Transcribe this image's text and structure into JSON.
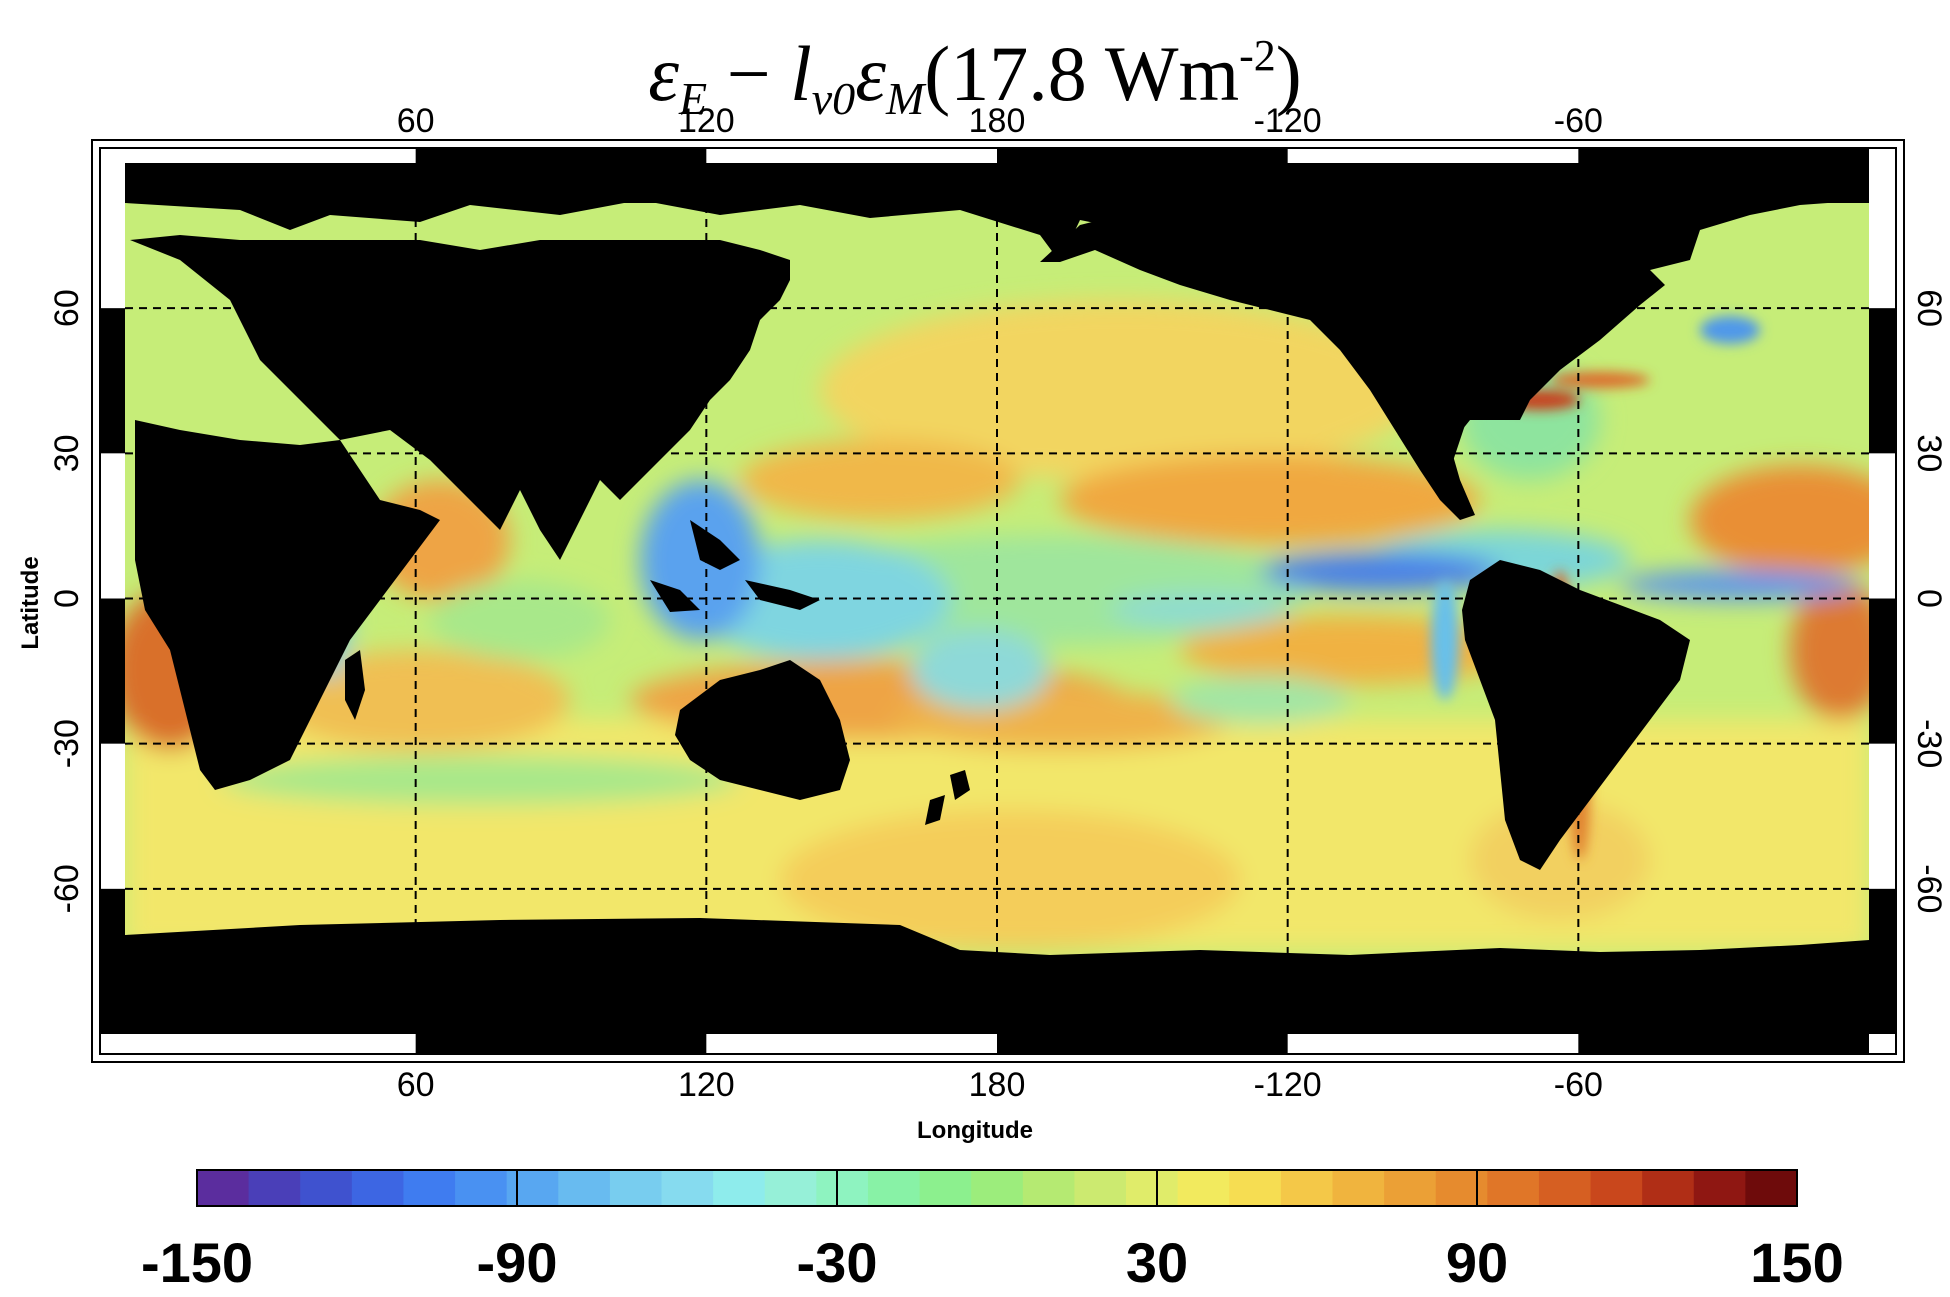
{
  "title": {
    "eps_e": "ε",
    "sub_e": "E",
    "minus": " − ",
    "l": "l",
    "sub_v0": "v0",
    "eps_m": "ε",
    "sub_m": "M",
    "value": "(17.8 Wm",
    "exp": "-2",
    "close": ")"
  },
  "map": {
    "xlabel": "Longitude",
    "ylabel": "Latitude",
    "lon_ticks": [
      "60",
      "120",
      "180",
      "-120",
      "-60"
    ],
    "lon_tick_values": [
      60,
      120,
      180,
      240,
      300
    ],
    "lat_ticks": [
      "60",
      "30",
      "0",
      "-30",
      "-60"
    ],
    "lat_tick_values": [
      60,
      30,
      0,
      -30,
      -60
    ],
    "lon_range": [
      0,
      360
    ],
    "lat_range": [
      -90,
      90
    ],
    "gridlines": "dashed",
    "land_color": "#000000"
  },
  "colorbar": {
    "min": -150,
    "max": 150,
    "tick_labels": [
      "-150",
      "-90",
      "-30",
      "30",
      "90",
      "150"
    ],
    "tick_values": [
      -150,
      -90,
      -30,
      30,
      90,
      150
    ],
    "colors": [
      "#5b2d9e",
      "#4a3fb8",
      "#3f52cf",
      "#3d66e3",
      "#3f7cf0",
      "#4991f2",
      "#58a7f1",
      "#68bbf0",
      "#78cdef",
      "#86dbef",
      "#8eecec",
      "#96f0d8",
      "#8ef3c0",
      "#88f2a6",
      "#8cf08e",
      "#9ced7c",
      "#b5ea72",
      "#ccea70",
      "#e0ec6a",
      "#f2ea5e",
      "#f6dd52",
      "#f4c848",
      "#f0b43e",
      "#eba036",
      "#e68b2e",
      "#e07628",
      "#d65f22",
      "#c9471c",
      "#b02e16",
      "#8f1712",
      "#6e0b0b"
    ]
  }
}
